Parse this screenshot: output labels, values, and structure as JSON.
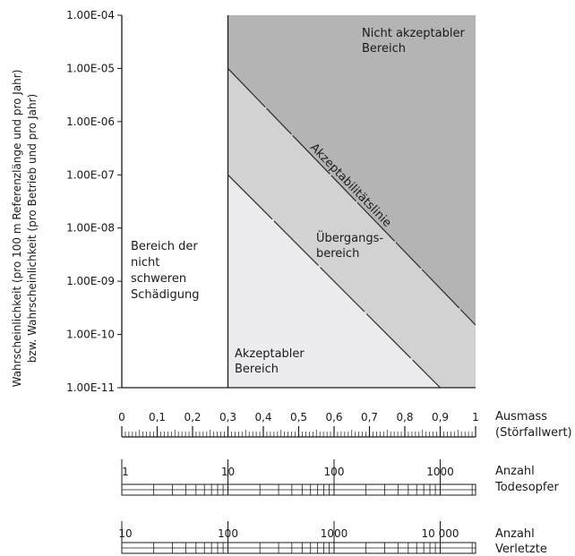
{
  "chart_data": {
    "type": "area",
    "y_scale": "log",
    "ylim": [
      1e-11,
      0.0001
    ],
    "xlim": [
      0,
      1
    ],
    "ylabel_line1": "Wahrscheinlichkeit (pro 100 m Referenzlänge und pro Jahr)",
    "ylabel_line2": "bzw. Wahrscheinlichkeit (pro Betrieb und pro Jahr)",
    "y_ticks": [
      {
        "value": 0.0001,
        "label": "1.00E-04"
      },
      {
        "value": 1e-05,
        "label": "1.00E-05"
      },
      {
        "value": 1e-06,
        "label": "1.00E-06"
      },
      {
        "value": 1e-07,
        "label": "1.00E-07"
      },
      {
        "value": 1e-08,
        "label": "1.00E-08"
      },
      {
        "value": 1e-09,
        "label": "1.00E-09"
      },
      {
        "value": 1e-10,
        "label": "1.00E-10"
      },
      {
        "value": 1e-11,
        "label": "1.00E-11"
      }
    ],
    "x_ticks": [
      {
        "value": 0,
        "label": "0"
      },
      {
        "value": 0.1,
        "label": "0,1"
      },
      {
        "value": 0.2,
        "label": "0,2"
      },
      {
        "value": 0.3,
        "label": "0,3"
      },
      {
        "value": 0.4,
        "label": "0,4"
      },
      {
        "value": 0.5,
        "label": "0,5"
      },
      {
        "value": 0.6,
        "label": "0,6"
      },
      {
        "value": 0.7,
        "label": "0,7"
      },
      {
        "value": 0.8,
        "label": "0,8"
      },
      {
        "value": 0.9,
        "label": "0,9"
      },
      {
        "value": 1,
        "label": "1"
      }
    ],
    "xlabel_line1": "Ausmass",
    "xlabel_line2": "(Störfallwert)",
    "x_threshold": 0.3,
    "lines": [
      {
        "name": "Akzeptabilitätslinie",
        "points": [
          [
            0.3,
            1e-05
          ],
          [
            1,
            1.5e-10
          ]
        ]
      },
      {
        "name": "",
        "points": [
          [
            0.3,
            1e-07
          ],
          [
            0.9,
            1e-11
          ]
        ]
      }
    ],
    "regions": {
      "not_acceptable": {
        "line1": "Nicht akzeptabler",
        "line2": "Bereich",
        "color": "#b4b4b4"
      },
      "transition": {
        "line1": "Übergangs-",
        "line2": "bereich",
        "color": "#d2d2d2"
      },
      "acceptable": {
        "line1": "Akzeptabler",
        "line2": "Bereich",
        "color": "#ececf0"
      },
      "non_severe": {
        "line1": "Bereich der",
        "line2": "nicht",
        "line3": "schweren",
        "line4": "Schädigung"
      }
    },
    "line_label": "Akzeptabilitätslinie",
    "deaths_scale": {
      "label_line1": "Anzahl",
      "label_line2": "Todesopfer",
      "ticks": [
        {
          "x": 0,
          "label": "1"
        },
        {
          "x": 0.3,
          "label": "10"
        },
        {
          "x": 0.6,
          "label": "100"
        },
        {
          "x": 0.9,
          "label": "1000"
        }
      ]
    },
    "injured_scale": {
      "label_line1": "Anzahl",
      "label_line2": "Verletzte",
      "ticks": [
        {
          "x": 0,
          "label": "10"
        },
        {
          "x": 0.3,
          "label": "100"
        },
        {
          "x": 0.6,
          "label": "1000"
        },
        {
          "x": 0.9,
          "label": "10 000"
        }
      ]
    }
  }
}
